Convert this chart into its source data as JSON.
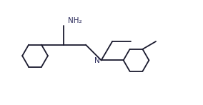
{
  "background_color": "#ffffff",
  "line_color": "#1a1a2e",
  "text_color": "#2a2a5a",
  "label_NH2": "NH₂",
  "label_N": "N",
  "figsize": [
    2.84,
    1.47
  ],
  "dpi": 100,
  "lw": 1.3
}
